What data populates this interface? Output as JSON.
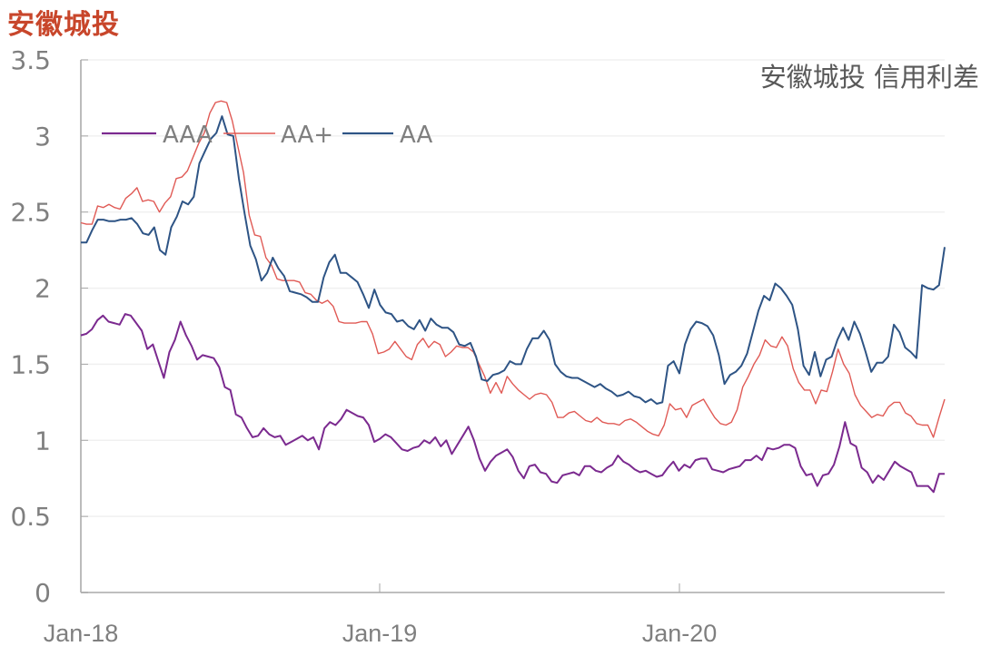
{
  "header": {
    "title": "安徽城投",
    "subtitle": "安徽城投 信用利差"
  },
  "chart_data": {
    "type": "line",
    "title": "安徽城投 信用利差",
    "xlabel": "",
    "ylabel": "",
    "ylim": [
      0,
      3.5
    ],
    "yticks": [
      0,
      0.5,
      1,
      1.5,
      2,
      2.5,
      3,
      3.5
    ],
    "ytick_labels": [
      "0",
      "0.5",
      "1",
      "1.5",
      "2",
      "2.5",
      "3",
      "3.5"
    ],
    "xtick_labels": [
      "Jan-18",
      "Jan-19",
      "Jan-20"
    ],
    "x_range": [
      "2018-01",
      "2020-11"
    ],
    "grid": true,
    "legend_position": "upper-left-inside",
    "frequency": "weekly",
    "series": [
      {
        "name": "AAA",
        "color": "#7b2a8f",
        "values": [
          1.69,
          1.7,
          1.73,
          1.79,
          1.82,
          1.78,
          1.77,
          1.76,
          1.83,
          1.82,
          1.77,
          1.72,
          1.6,
          1.63,
          1.52,
          1.41,
          1.58,
          1.66,
          1.78,
          1.69,
          1.62,
          1.53,
          1.56,
          1.55,
          1.54,
          1.48,
          1.35,
          1.33,
          1.17,
          1.15,
          1.08,
          1.02,
          1.03,
          1.08,
          1.04,
          1.02,
          1.03,
          0.97,
          0.99,
          1.01,
          1.03,
          1.0,
          1.02,
          0.94,
          1.08,
          1.12,
          1.1,
          1.14,
          1.2,
          1.18,
          1.16,
          1.15,
          1.1,
          0.99,
          1.01,
          1.04,
          1.02,
          0.98,
          0.94,
          0.93,
          0.95,
          0.96,
          1.0,
          0.98,
          1.02,
          0.96,
          1.0,
          0.91,
          0.97,
          1.03,
          1.09,
          1.0,
          0.88,
          0.8,
          0.86,
          0.9,
          0.92,
          0.94,
          0.89,
          0.8,
          0.75,
          0.83,
          0.84,
          0.79,
          0.78,
          0.73,
          0.72,
          0.77,
          0.78,
          0.79,
          0.77,
          0.83,
          0.83,
          0.8,
          0.79,
          0.82,
          0.84,
          0.9,
          0.86,
          0.84,
          0.81,
          0.79,
          0.8,
          0.78,
          0.76,
          0.77,
          0.82,
          0.86,
          0.8,
          0.84,
          0.82,
          0.87,
          0.88,
          0.88,
          0.81,
          0.8,
          0.79,
          0.81,
          0.82,
          0.83,
          0.87,
          0.87,
          0.9,
          0.87,
          0.95,
          0.94,
          0.95,
          0.97,
          0.97,
          0.95,
          0.83,
          0.77,
          0.78,
          0.7,
          0.77,
          0.78,
          0.84,
          0.96,
          1.12,
          0.98,
          0.96,
          0.82,
          0.79,
          0.72,
          0.77,
          0.74,
          0.8,
          0.86,
          0.83,
          0.81,
          0.79,
          0.7,
          0.7,
          0.7,
          0.66,
          0.78,
          0.78
        ]
      },
      {
        "name": "AA+",
        "color": "#e05a55",
        "values": [
          2.43,
          2.42,
          2.42,
          2.54,
          2.53,
          2.55,
          2.53,
          2.52,
          2.59,
          2.62,
          2.66,
          2.57,
          2.58,
          2.57,
          2.5,
          2.56,
          2.6,
          2.72,
          2.73,
          2.77,
          2.86,
          2.95,
          3.02,
          3.15,
          3.22,
          3.23,
          3.22,
          3.1,
          2.93,
          2.76,
          2.48,
          2.35,
          2.34,
          2.2,
          2.15,
          2.06,
          2.05,
          2.05,
          2.05,
          2.04,
          1.97,
          1.96,
          1.92,
          1.9,
          1.92,
          1.88,
          1.78,
          1.77,
          1.77,
          1.77,
          1.78,
          1.78,
          1.7,
          1.57,
          1.58,
          1.6,
          1.65,
          1.6,
          1.55,
          1.53,
          1.63,
          1.67,
          1.61,
          1.65,
          1.63,
          1.55,
          1.58,
          1.62,
          1.61,
          1.61,
          1.58,
          1.5,
          1.42,
          1.31,
          1.38,
          1.31,
          1.42,
          1.37,
          1.33,
          1.3,
          1.27,
          1.3,
          1.31,
          1.3,
          1.25,
          1.15,
          1.15,
          1.18,
          1.19,
          1.16,
          1.13,
          1.12,
          1.15,
          1.12,
          1.11,
          1.11,
          1.1,
          1.13,
          1.14,
          1.12,
          1.09,
          1.06,
          1.04,
          1.03,
          1.1,
          1.24,
          1.2,
          1.21,
          1.15,
          1.23,
          1.25,
          1.27,
          1.21,
          1.15,
          1.11,
          1.1,
          1.12,
          1.2,
          1.35,
          1.42,
          1.5,
          1.56,
          1.66,
          1.62,
          1.61,
          1.68,
          1.62,
          1.47,
          1.38,
          1.33,
          1.33,
          1.24,
          1.33,
          1.32,
          1.45,
          1.6,
          1.5,
          1.44,
          1.3,
          1.23,
          1.19,
          1.15,
          1.17,
          1.16,
          1.22,
          1.25,
          1.25,
          1.18,
          1.16,
          1.11,
          1.1,
          1.1,
          1.02,
          1.15,
          1.27
        ]
      },
      {
        "name": "AA",
        "color": "#2e5485",
        "values": [
          2.3,
          2.3,
          2.38,
          2.45,
          2.45,
          2.44,
          2.44,
          2.45,
          2.45,
          2.46,
          2.42,
          2.36,
          2.35,
          2.4,
          2.25,
          2.22,
          2.4,
          2.47,
          2.57,
          2.55,
          2.6,
          2.82,
          2.9,
          2.98,
          3.02,
          3.13,
          3.01,
          3.0,
          2.72,
          2.49,
          2.28,
          2.19,
          2.05,
          2.1,
          2.2,
          2.13,
          2.08,
          1.98,
          1.97,
          1.96,
          1.94,
          1.91,
          1.91,
          2.07,
          2.17,
          2.22,
          2.1,
          2.1,
          2.07,
          2.04,
          1.96,
          1.87,
          1.99,
          1.89,
          1.84,
          1.83,
          1.78,
          1.79,
          1.75,
          1.73,
          1.79,
          1.72,
          1.8,
          1.76,
          1.74,
          1.74,
          1.71,
          1.63,
          1.62,
          1.64,
          1.55,
          1.4,
          1.39,
          1.43,
          1.44,
          1.46,
          1.52,
          1.5,
          1.5,
          1.6,
          1.67,
          1.67,
          1.72,
          1.66,
          1.5,
          1.45,
          1.42,
          1.41,
          1.41,
          1.39,
          1.37,
          1.35,
          1.37,
          1.34,
          1.32,
          1.29,
          1.3,
          1.32,
          1.29,
          1.28,
          1.25,
          1.27,
          1.24,
          1.25,
          1.49,
          1.52,
          1.44,
          1.63,
          1.73,
          1.78,
          1.77,
          1.75,
          1.69,
          1.56,
          1.37,
          1.43,
          1.45,
          1.49,
          1.57,
          1.71,
          1.85,
          1.95,
          1.92,
          2.03,
          2.0,
          1.95,
          1.89,
          1.73,
          1.49,
          1.43,
          1.58,
          1.42,
          1.53,
          1.55,
          1.66,
          1.74,
          1.66,
          1.78,
          1.7,
          1.58,
          1.45,
          1.51,
          1.51,
          1.55,
          1.76,
          1.71,
          1.61,
          1.58,
          1.54,
          2.02,
          2.0,
          1.99,
          2.02,
          2.27
        ]
      }
    ]
  },
  "legend": {
    "items": [
      {
        "label": "AAA",
        "color": "#7b2a8f"
      },
      {
        "label": "AA+",
        "color": "#e05a55"
      },
      {
        "label": "AA",
        "color": "#2e5485"
      }
    ]
  }
}
